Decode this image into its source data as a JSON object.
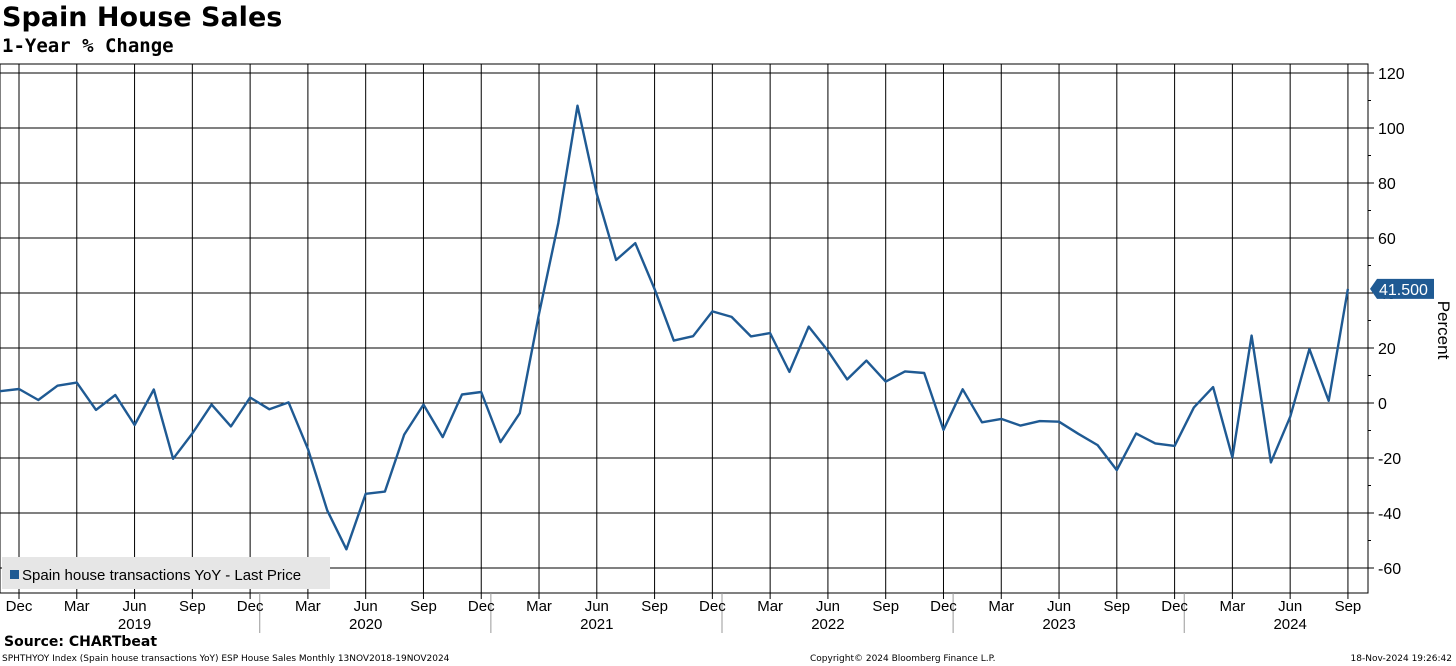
{
  "header": {
    "title": "Spain House Sales",
    "subtitle": "1-Year % Change"
  },
  "colors": {
    "series": "#1f5a93",
    "grid": "#000000",
    "legend_bg": "#e6e6e6"
  },
  "chart_data": {
    "type": "line",
    "title": "Spain House Sales",
    "subtitle": "1-Year % Change",
    "ylabel": "Percent",
    "ylim": [
      -65,
      122
    ],
    "yticks": [
      -60,
      -40,
      -20,
      0,
      20,
      40,
      60,
      80,
      100,
      120
    ],
    "y_axis_side": "right",
    "grid": true,
    "x_range": [
      "2018-11",
      "2024-10"
    ],
    "x_tick_labels": [
      {
        "date": "2018-12",
        "label": "Dec"
      },
      {
        "date": "2019-03",
        "label": "Mar"
      },
      {
        "date": "2019-06",
        "label": "Jun"
      },
      {
        "date": "2019-09",
        "label": "Sep"
      },
      {
        "date": "2019-12",
        "label": "Dec"
      },
      {
        "date": "2020-03",
        "label": "Mar"
      },
      {
        "date": "2020-06",
        "label": "Jun"
      },
      {
        "date": "2020-09",
        "label": "Sep"
      },
      {
        "date": "2020-12",
        "label": "Dec"
      },
      {
        "date": "2021-03",
        "label": "Mar"
      },
      {
        "date": "2021-06",
        "label": "Jun"
      },
      {
        "date": "2021-09",
        "label": "Sep"
      },
      {
        "date": "2021-12",
        "label": "Dec"
      },
      {
        "date": "2022-03",
        "label": "Mar"
      },
      {
        "date": "2022-06",
        "label": "Jun"
      },
      {
        "date": "2022-09",
        "label": "Sep"
      },
      {
        "date": "2022-12",
        "label": "Dec"
      },
      {
        "date": "2023-03",
        "label": "Mar"
      },
      {
        "date": "2023-06",
        "label": "Jun"
      },
      {
        "date": "2023-09",
        "label": "Sep"
      },
      {
        "date": "2023-12",
        "label": "Dec"
      },
      {
        "date": "2024-03",
        "label": "Mar"
      },
      {
        "date": "2024-06",
        "label": "Jun"
      },
      {
        "date": "2024-09",
        "label": "Sep"
      }
    ],
    "year_labels": [
      {
        "date": "2019-06",
        "label": "2019"
      },
      {
        "date": "2020-06",
        "label": "2020"
      },
      {
        "date": "2021-06",
        "label": "2021"
      },
      {
        "date": "2022-06",
        "label": "2022"
      },
      {
        "date": "2023-06",
        "label": "2023"
      },
      {
        "date": "2024-06",
        "label": "2024"
      }
    ],
    "year_separators": [
      "2020-01",
      "2021-01",
      "2022-01",
      "2023-01",
      "2024-01"
    ],
    "legend": {
      "position": "bottom-left",
      "entry": "Spain house transactions YoY - Last Price"
    },
    "last_value_label": "41.500",
    "series": [
      {
        "name": "Spain house transactions YoY - Last Price",
        "x": [
          "2018-11",
          "2018-12",
          "2019-01",
          "2019-02",
          "2019-03",
          "2019-04",
          "2019-05",
          "2019-06",
          "2019-07",
          "2019-08",
          "2019-09",
          "2019-10",
          "2019-11",
          "2019-12",
          "2020-01",
          "2020-02",
          "2020-03",
          "2020-04",
          "2020-05",
          "2020-06",
          "2020-07",
          "2020-08",
          "2020-09",
          "2020-10",
          "2020-11",
          "2020-12",
          "2021-01",
          "2021-02",
          "2021-03",
          "2021-04",
          "2021-05",
          "2021-06",
          "2021-07",
          "2021-08",
          "2021-09",
          "2021-10",
          "2021-11",
          "2021-12",
          "2022-01",
          "2022-02",
          "2022-03",
          "2022-04",
          "2022-05",
          "2022-06",
          "2022-07",
          "2022-08",
          "2022-09",
          "2022-10",
          "2022-11",
          "2022-12",
          "2023-01",
          "2023-02",
          "2023-03",
          "2023-04",
          "2023-05",
          "2023-06",
          "2023-07",
          "2023-08",
          "2023-09",
          "2023-10",
          "2023-11",
          "2023-12",
          "2024-01",
          "2024-02",
          "2024-03",
          "2024-04",
          "2024-05",
          "2024-06",
          "2024-07",
          "2024-08",
          "2024-09"
        ],
        "values": [
          4.3,
          5.1,
          1.1,
          6.3,
          7.4,
          -2.5,
          2.9,
          -8.0,
          4.9,
          -20.3,
          -11.1,
          -0.6,
          -8.5,
          2.0,
          -2.3,
          0.2,
          -16.7,
          -39.0,
          -53.2,
          -33.0,
          -32.2,
          -11.5,
          -0.6,
          -12.4,
          3.1,
          4.0,
          -14.2,
          -3.7,
          32.4,
          65.4,
          108.1,
          76.0,
          52.0,
          58.1,
          41.4,
          22.7,
          24.3,
          33.3,
          31.3,
          24.2,
          25.4,
          11.3,
          27.8,
          19.0,
          8.6,
          15.4,
          7.8,
          11.5,
          10.9,
          -9.8,
          5.0,
          -7.0,
          -5.8,
          -8.2,
          -6.6,
          -6.8,
          -11.2,
          -15.3,
          -24.4,
          -11.1,
          -14.7,
          -15.6,
          -1.6,
          5.8,
          -19.8,
          24.5,
          -21.6,
          -5.0,
          19.6,
          0.8,
          41.5
        ]
      }
    ]
  },
  "footer": {
    "source": "Source: CHARTbeat",
    "index": "SPHTHYOY Index (Spain house transactions YoY) ESP House Sales  Monthly 13NOV2018-19NOV2024",
    "copyright": "Copyright© 2024 Bloomberg Finance L.P.",
    "timestamp": "18-Nov-2024 19:26:42"
  }
}
